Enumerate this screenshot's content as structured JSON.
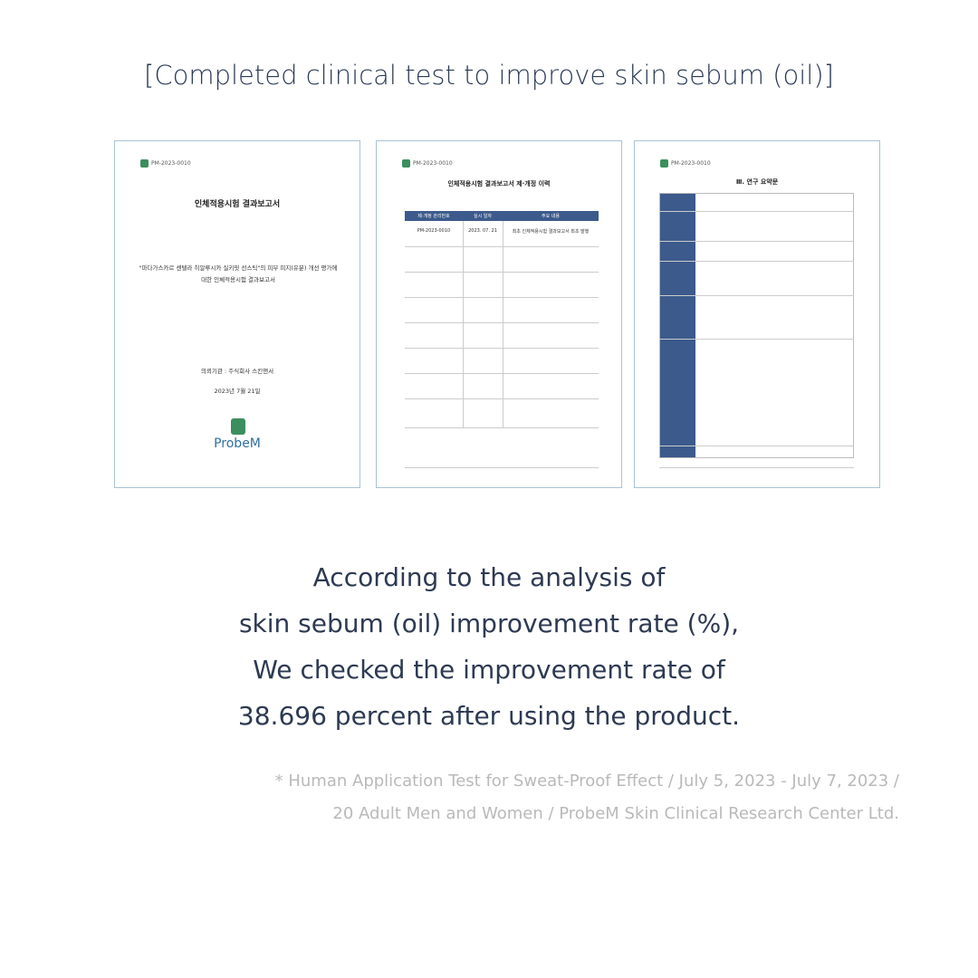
{
  "header": {
    "title": "[Completed clinical test to improve skin sebum (oil)]"
  },
  "documents": [
    {
      "code": "PM-2023-0010",
      "title": "인체적용시험 결과보고서",
      "subject": "\"마다가스카르 센텔라 히알루시카 실키핏 선스틱\"의 피부 피지(유분) 개선 평가에 대한 인체적용시험 결과보고서",
      "client": "의뢰기관 : 주식회사 스킨앤서",
      "date": "2023년 7월 21일",
      "logo": "ProbeM"
    },
    {
      "code": "PM-2023-0010",
      "title": "인체적용시험 결과보고서 제·개정 이력",
      "table_header": [
        "제·개정 관리번호",
        "실시 일자",
        "주요 내용"
      ],
      "table_row": [
        "PM-2023-0010",
        "2023. 07. 21",
        "최초 인체적용시험 결과보고서 최초 발행"
      ]
    },
    {
      "code": "PM-2023-0010",
      "title": "Ⅲ. 연구 요약문"
    }
  ],
  "body": {
    "lines": [
      "According to the analysis of",
      "skin sebum (oil) improvement rate (%),",
      "We checked the improvement rate of",
      "38.696 percent after using the product."
    ]
  },
  "footnote": {
    "lines": [
      "* Human Application Test for Sweat-Proof Effect / July 5, 2023 - July 7, 2023 /",
      "20 Adult Men and Women / ProbeM Skin Clinical Research Center Ltd."
    ]
  }
}
